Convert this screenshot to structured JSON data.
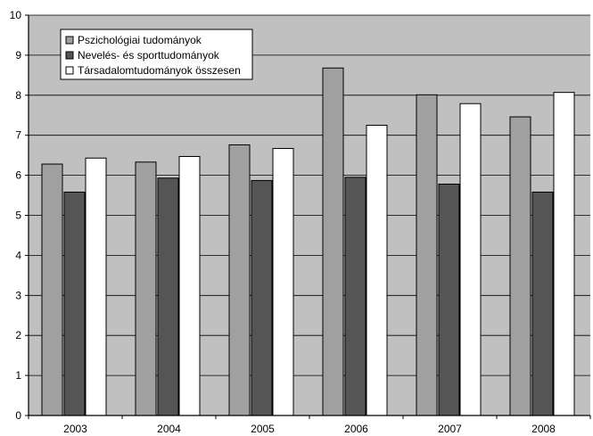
{
  "chart_data": {
    "type": "bar",
    "categories": [
      "2003",
      "2004",
      "2005",
      "2006",
      "2007",
      "2008"
    ],
    "series": [
      {
        "name": "Pszichológiai tudományok",
        "values": [
          6.28,
          6.33,
          6.76,
          8.68,
          8.01,
          7.46
        ],
        "color": "#a0a0a0"
      },
      {
        "name": "Nevelés- és sporttudományok",
        "values": [
          5.58,
          5.93,
          5.87,
          5.95,
          5.78,
          5.58
        ],
        "color": "#555555"
      },
      {
        "name": "Társadalomtudományok összesen",
        "values": [
          6.43,
          6.47,
          6.67,
          7.25,
          7.79,
          8.07
        ],
        "color": "#ffffff"
      }
    ],
    "title": "",
    "xlabel": "",
    "ylabel": "",
    "ylim": [
      0,
      10
    ],
    "yticks": [
      "0",
      "1",
      "2",
      "3",
      "4",
      "5",
      "6",
      "7",
      "8",
      "9",
      "10"
    ],
    "grid": true,
    "legend_position": "top-left",
    "plot_background": "#c0c0c0",
    "gridline_color": "#000000"
  }
}
